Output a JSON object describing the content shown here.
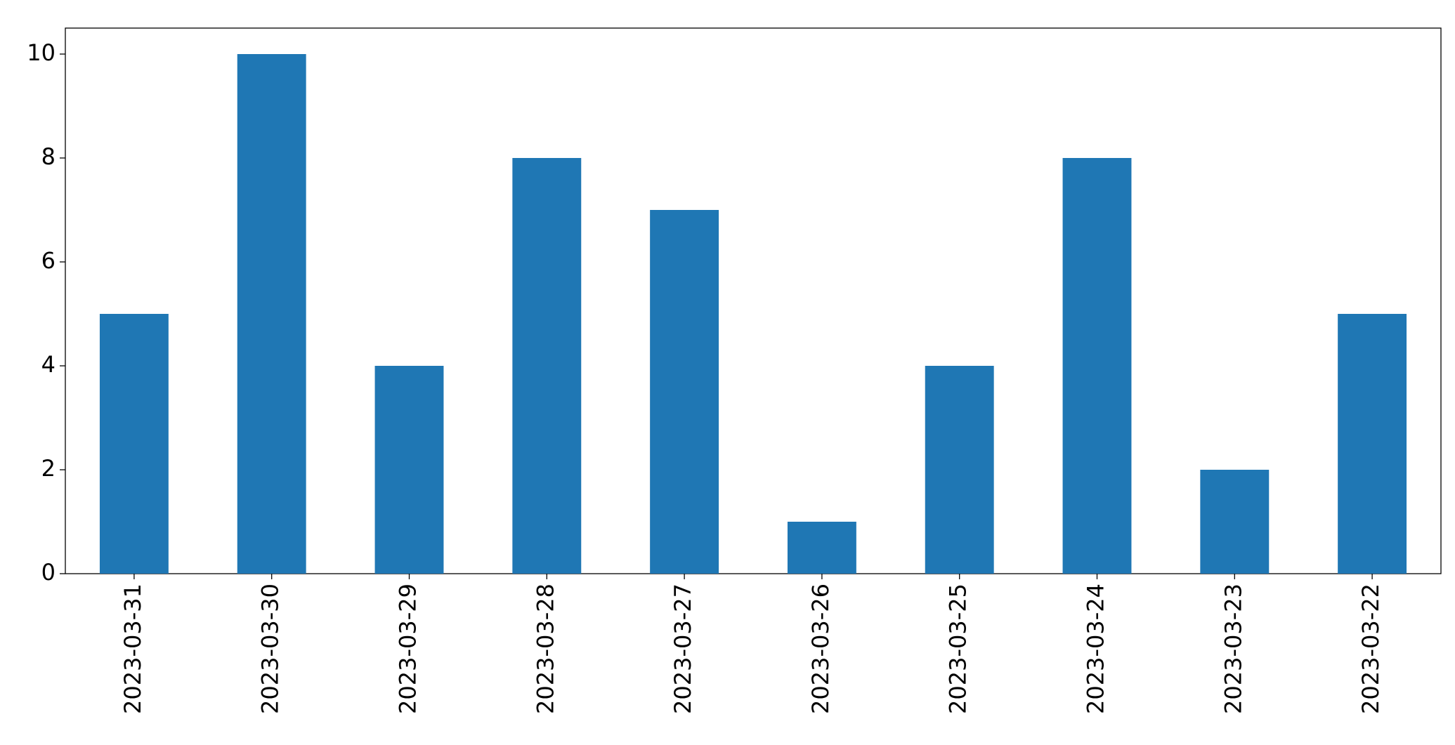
{
  "chart_data": {
    "type": "bar",
    "categories": [
      "2023-03-31",
      "2023-03-30",
      "2023-03-29",
      "2023-03-28",
      "2023-03-27",
      "2023-03-26",
      "2023-03-25",
      "2023-03-24",
      "2023-03-23",
      "2023-03-22"
    ],
    "values": [
      5,
      10,
      4,
      8,
      7,
      1,
      4,
      8,
      2,
      5
    ],
    "color": "#1f77b4",
    "ylim": [
      0,
      10.5
    ],
    "yticks": [
      0,
      2,
      4,
      6,
      8,
      10
    ],
    "grid": false
  }
}
